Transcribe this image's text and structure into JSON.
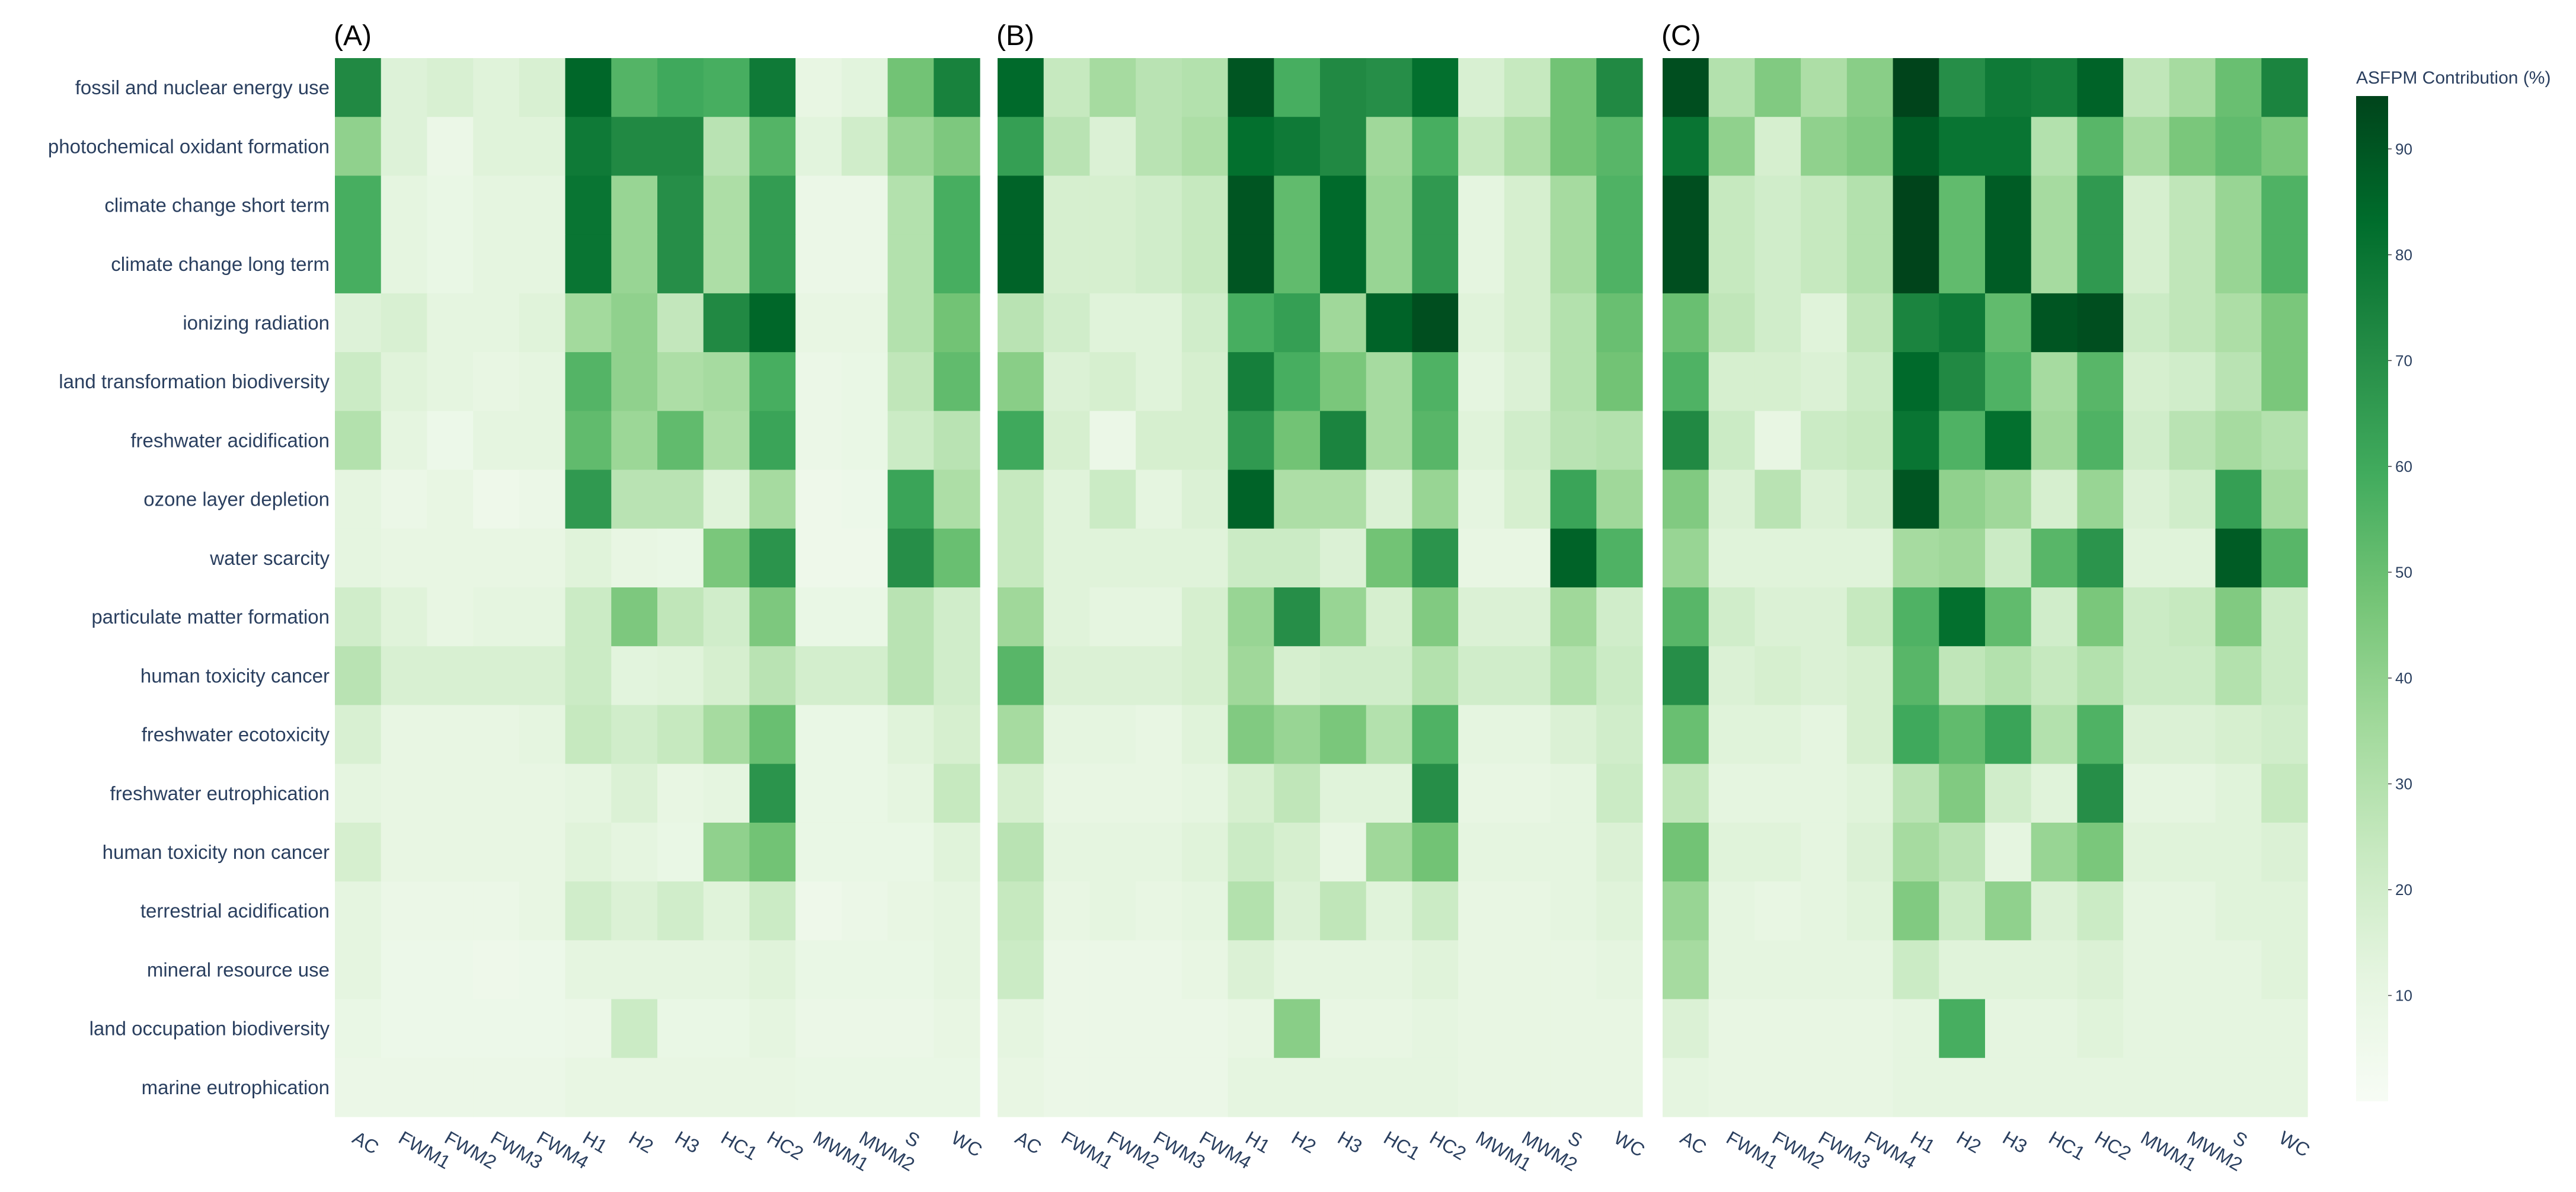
{
  "chart_data": {
    "type": "heatmap",
    "colorscale": [
      "#f7fcf5",
      "#e5f5e0",
      "#c7e9c0",
      "#a1d99b",
      "#74c476",
      "#41ab5d",
      "#238b45",
      "#006d2c",
      "#00441b"
    ],
    "colorbar": {
      "title": "ASFPM Contribution (%)",
      "range": [
        0,
        95
      ],
      "ticks": [
        10,
        20,
        30,
        40,
        50,
        60,
        70,
        80,
        90
      ]
    },
    "rows": [
      "fossil and nuclear energy use",
      "photochemical oxidant formation",
      "climate change short term",
      "climate change long term",
      "ionizing radiation",
      "land transformation biodiversity",
      "freshwater acidification",
      "ozone layer depletion",
      "water scarcity",
      "particulate matter formation",
      "human toxicity cancer",
      "freshwater ecotoxicity",
      "freshwater eutrophication",
      "human toxicity non cancer",
      "terrestrial acidification",
      "mineral resource use",
      "land occupation biodiversity",
      "marine eutrophication"
    ],
    "columns": [
      "AC",
      "FWM1",
      "FWM2",
      "FWM3",
      "FWM4",
      "H1",
      "H2",
      "H3",
      "HC1",
      "HC2",
      "MWM1",
      "MWM2",
      "S",
      "WC"
    ],
    "panels": [
      {
        "label": "(A)",
        "z": [
          [
            72,
            15,
            17,
            14,
            17,
            85,
            55,
            60,
            58,
            78,
            10,
            13,
            48,
            75
          ],
          [
            40,
            15,
            8,
            14,
            14,
            78,
            72,
            72,
            28,
            55,
            13,
            20,
            38,
            45
          ],
          [
            58,
            12,
            9,
            12,
            12,
            80,
            38,
            70,
            32,
            65,
            8,
            8,
            30,
            58
          ],
          [
            58,
            12,
            9,
            12,
            12,
            80,
            38,
            70,
            32,
            65,
            8,
            8,
            30,
            58
          ],
          [
            15,
            17,
            12,
            12,
            14,
            35,
            40,
            25,
            72,
            85,
            10,
            10,
            30,
            48
          ],
          [
            22,
            14,
            12,
            10,
            12,
            55,
            40,
            32,
            34,
            58,
            8,
            9,
            26,
            52
          ],
          [
            30,
            12,
            7,
            12,
            12,
            52,
            37,
            52,
            32,
            62,
            8,
            9,
            22,
            28
          ],
          [
            12,
            8,
            10,
            6,
            8,
            66,
            28,
            28,
            14,
            34,
            6,
            7,
            62,
            32
          ],
          [
            12,
            10,
            10,
            10,
            10,
            14,
            10,
            9,
            46,
            68,
            6,
            6,
            70,
            50
          ],
          [
            20,
            14,
            10,
            12,
            12,
            22,
            45,
            26,
            20,
            45,
            9,
            9,
            28,
            20
          ],
          [
            28,
            17,
            17,
            17,
            17,
            22,
            13,
            14,
            18,
            28,
            19,
            19,
            28,
            20
          ],
          [
            17,
            10,
            10,
            10,
            12,
            24,
            20,
            24,
            34,
            50,
            9,
            9,
            14,
            18
          ],
          [
            12,
            10,
            10,
            10,
            10,
            12,
            16,
            10,
            12,
            68,
            9,
            9,
            12,
            24
          ],
          [
            18,
            10,
            10,
            10,
            10,
            14,
            12,
            9,
            40,
            48,
            9,
            9,
            9,
            14
          ],
          [
            12,
            8,
            8,
            8,
            10,
            20,
            16,
            20,
            14,
            22,
            6,
            8,
            10,
            12
          ],
          [
            12,
            7,
            7,
            6,
            7,
            12,
            12,
            12,
            12,
            14,
            9,
            9,
            9,
            12
          ],
          [
            9,
            7,
            7,
            7,
            7,
            8,
            22,
            9,
            9,
            12,
            8,
            8,
            8,
            10
          ],
          [
            8,
            8,
            8,
            8,
            8,
            10,
            10,
            10,
            10,
            10,
            9,
            9,
            9,
            9
          ]
        ]
      },
      {
        "label": "(B)",
        "z": [
          [
            84,
            24,
            34,
            28,
            30,
            90,
            58,
            72,
            70,
            82,
            17,
            24,
            48,
            72
          ],
          [
            64,
            28,
            16,
            28,
            32,
            82,
            78,
            72,
            36,
            58,
            24,
            32,
            48,
            54
          ],
          [
            86,
            18,
            18,
            20,
            24,
            90,
            52,
            84,
            38,
            66,
            12,
            18,
            34,
            56
          ],
          [
            86,
            18,
            18,
            20,
            24,
            90,
            52,
            84,
            38,
            66,
            12,
            18,
            34,
            56
          ],
          [
            28,
            20,
            14,
            14,
            20,
            58,
            64,
            36,
            86,
            92,
            14,
            18,
            30,
            50
          ],
          [
            42,
            16,
            18,
            14,
            18,
            76,
            58,
            46,
            34,
            56,
            12,
            16,
            30,
            48
          ],
          [
            60,
            18,
            8,
            18,
            18,
            66,
            48,
            74,
            34,
            54,
            14,
            20,
            28,
            30
          ],
          [
            24,
            14,
            22,
            12,
            16,
            86,
            32,
            32,
            16,
            38,
            12,
            18,
            62,
            36
          ],
          [
            24,
            14,
            14,
            14,
            14,
            22,
            22,
            16,
            48,
            68,
            10,
            10,
            86,
            56
          ],
          [
            36,
            14,
            12,
            12,
            18,
            38,
            70,
            38,
            18,
            44,
            16,
            16,
            36,
            20
          ],
          [
            54,
            16,
            16,
            16,
            18,
            36,
            18,
            20,
            20,
            30,
            20,
            20,
            30,
            22
          ],
          [
            34,
            12,
            12,
            10,
            14,
            44,
            38,
            46,
            30,
            56,
            12,
            12,
            16,
            20
          ],
          [
            18,
            10,
            10,
            10,
            12,
            18,
            26,
            14,
            14,
            70,
            10,
            10,
            12,
            22
          ],
          [
            28,
            12,
            12,
            12,
            14,
            22,
            18,
            10,
            36,
            48,
            12,
            12,
            12,
            16
          ],
          [
            24,
            10,
            12,
            10,
            12,
            30,
            16,
            26,
            14,
            22,
            10,
            10,
            12,
            14
          ],
          [
            22,
            8,
            8,
            8,
            10,
            16,
            12,
            12,
            12,
            14,
            10,
            10,
            10,
            12
          ],
          [
            12,
            8,
            8,
            8,
            8,
            10,
            42,
            10,
            10,
            12,
            10,
            10,
            10,
            10
          ],
          [
            10,
            8,
            8,
            8,
            8,
            12,
            12,
            12,
            12,
            12,
            10,
            10,
            10,
            10
          ]
        ]
      },
      {
        "label": "(C)",
        "z": [
          [
            92,
            30,
            44,
            32,
            42,
            95,
            70,
            78,
            76,
            86,
            26,
            34,
            50,
            74
          ],
          [
            80,
            40,
            18,
            40,
            44,
            88,
            80,
            80,
            30,
            54,
            34,
            46,
            52,
            46
          ],
          [
            92,
            24,
            20,
            24,
            30,
            95,
            52,
            88,
            34,
            66,
            18,
            26,
            38,
            56
          ],
          [
            92,
            24,
            20,
            24,
            30,
            95,
            52,
            88,
            34,
            66,
            18,
            26,
            38,
            56
          ],
          [
            50,
            26,
            20,
            14,
            26,
            74,
            78,
            52,
            90,
            92,
            22,
            26,
            32,
            46
          ],
          [
            56,
            18,
            18,
            16,
            22,
            84,
            72,
            56,
            34,
            54,
            18,
            20,
            28,
            46
          ],
          [
            72,
            22,
            10,
            22,
            24,
            80,
            56,
            82,
            36,
            56,
            20,
            28,
            34,
            30
          ],
          [
            44,
            16,
            28,
            16,
            20,
            90,
            40,
            36,
            18,
            38,
            16,
            20,
            64,
            34
          ],
          [
            38,
            14,
            14,
            14,
            14,
            34,
            36,
            22,
            54,
            68,
            14,
            14,
            88,
            54
          ],
          [
            54,
            20,
            16,
            16,
            24,
            56,
            82,
            52,
            20,
            46,
            22,
            24,
            44,
            22
          ],
          [
            70,
            16,
            18,
            16,
            18,
            54,
            26,
            30,
            24,
            30,
            22,
            22,
            30,
            22
          ],
          [
            50,
            14,
            14,
            12,
            18,
            60,
            52,
            62,
            30,
            56,
            16,
            16,
            18,
            20
          ],
          [
            26,
            12,
            12,
            12,
            14,
            28,
            44,
            20,
            14,
            70,
            12,
            12,
            14,
            24
          ],
          [
            48,
            14,
            14,
            12,
            16,
            34,
            28,
            12,
            38,
            46,
            14,
            14,
            14,
            16
          ],
          [
            38,
            12,
            10,
            12,
            14,
            44,
            22,
            40,
            16,
            22,
            12,
            12,
            14,
            14
          ],
          [
            34,
            12,
            12,
            12,
            12,
            22,
            14,
            14,
            14,
            16,
            12,
            12,
            12,
            14
          ],
          [
            16,
            10,
            10,
            10,
            10,
            12,
            58,
            12,
            12,
            14,
            12,
            12,
            12,
            12
          ],
          [
            12,
            10,
            10,
            10,
            10,
            12,
            12,
            12,
            12,
            12,
            12,
            12,
            12,
            12
          ]
        ]
      }
    ]
  }
}
